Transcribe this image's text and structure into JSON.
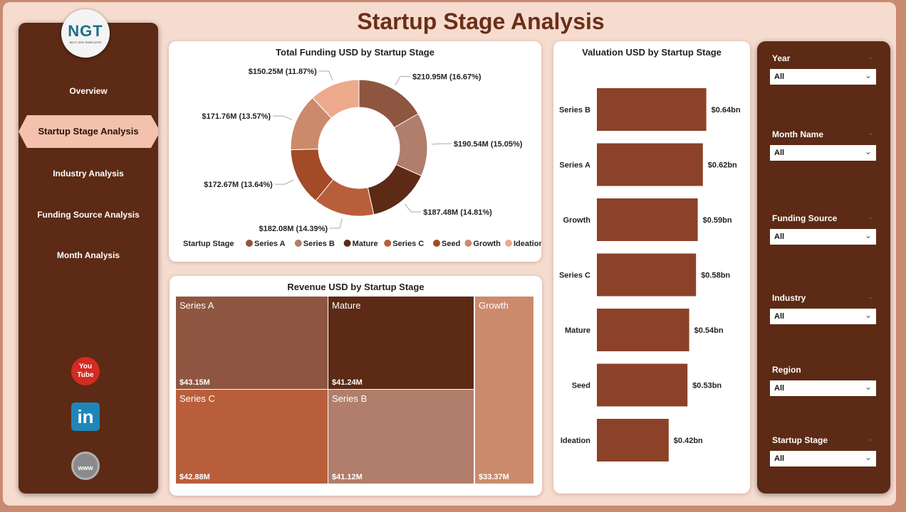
{
  "title": "Startup Stage Analysis",
  "logo": {
    "text": "NGT",
    "sub": "NEXT GEN TEMPLATES"
  },
  "nav": [
    {
      "label": "Overview"
    },
    {
      "label": "Startup Stage Analysis",
      "active": true
    },
    {
      "label": "Industry Analysis"
    },
    {
      "label": "Funding Source Analysis"
    },
    {
      "label": "Month Analysis"
    }
  ],
  "social": [
    {
      "icon": "youtube-icon"
    },
    {
      "icon": "linkedin-icon"
    },
    {
      "icon": "website-globe-icon"
    }
  ],
  "colors": {
    "Series A": "#8e5640",
    "Series B": "#b07e6a",
    "Mature": "#5c2a15",
    "Series C": "#b95e3b",
    "Seed": "#a34a27",
    "Growth": "#cc8a6c",
    "Ideation": "#eda98b"
  },
  "chart_data": [
    {
      "type": "pie",
      "title": "Total Funding USD by Startup Stage",
      "legend_title": "Startup Stage",
      "legend": "bottom",
      "categories": [
        "Series A",
        "Series B",
        "Mature",
        "Series C",
        "Seed",
        "Growth",
        "Ideation"
      ],
      "values": [
        210.95,
        190.54,
        187.48,
        182.08,
        172.67,
        171.76,
        150.25
      ],
      "labels": [
        "$210.95M (16.67%)",
        "$190.54M (15.05%)",
        "$187.48M (14.81%)",
        "$182.08M (14.39%)",
        "$172.67M (13.64%)",
        "$171.76M (13.57%)",
        "$150.25M (11.87%)"
      ]
    },
    {
      "type": "bar",
      "orientation": "horizontal",
      "title": "Valuation USD by Startup Stage",
      "categories": [
        "Series B",
        "Series A",
        "Growth",
        "Series C",
        "Mature",
        "Seed",
        "Ideation"
      ],
      "values": [
        0.64,
        0.62,
        0.59,
        0.58,
        0.54,
        0.53,
        0.42
      ],
      "labels": [
        "$0.64bn",
        "$0.62bn",
        "$0.59bn",
        "$0.58bn",
        "$0.54bn",
        "$0.53bn",
        "$0.42bn"
      ],
      "bar_color": "#8b4228"
    },
    {
      "type": "treemap",
      "title": "Revenue USD by Startup Stage",
      "items": [
        {
          "name": "Series A",
          "label": "$43.15M"
        },
        {
          "name": "Mature",
          "label": "$41.24M"
        },
        {
          "name": "Growth",
          "label": "$33.37M"
        },
        {
          "name": "Series C",
          "label": "$42.88M"
        },
        {
          "name": "Series B",
          "label": "$41.12M"
        }
      ]
    }
  ],
  "filters": [
    {
      "label": "Year",
      "value": "All"
    },
    {
      "label": "Month Name",
      "value": "All"
    },
    {
      "label": "Funding Source",
      "value": "All"
    },
    {
      "label": "Industry",
      "value": "All"
    },
    {
      "label": "Region",
      "value": "All"
    },
    {
      "label": "Startup Stage",
      "value": "All"
    }
  ]
}
